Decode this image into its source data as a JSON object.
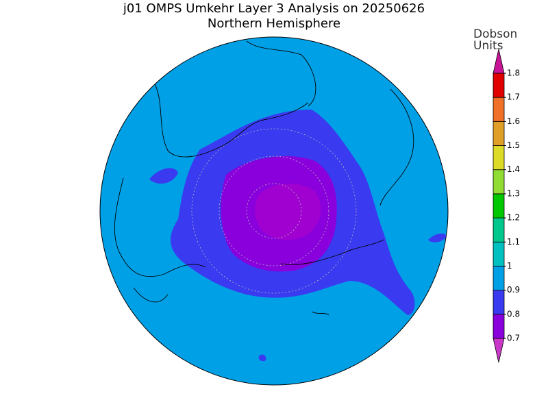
{
  "title": "j01 OMPS Umkehr Layer 3 Analysis on 20250626",
  "subtitle": "Northern Hemisphere",
  "colorbar": {
    "label": [
      "Dobson",
      "Units"
    ],
    "ticks": [
      0.7,
      0.8,
      0.9,
      1,
      1.1,
      1.2,
      1.3,
      1.4,
      1.5,
      1.6,
      1.7,
      1.8
    ],
    "colors": [
      "#c838c8",
      "#8a00dc",
      "#3a3af0",
      "#00a0e6",
      "#00c0c0",
      "#00c88c",
      "#00c800",
      "#90dc32",
      "#dcdc28",
      "#e0a028",
      "#f07028",
      "#e00000",
      "#c81496"
    ]
  }
}
